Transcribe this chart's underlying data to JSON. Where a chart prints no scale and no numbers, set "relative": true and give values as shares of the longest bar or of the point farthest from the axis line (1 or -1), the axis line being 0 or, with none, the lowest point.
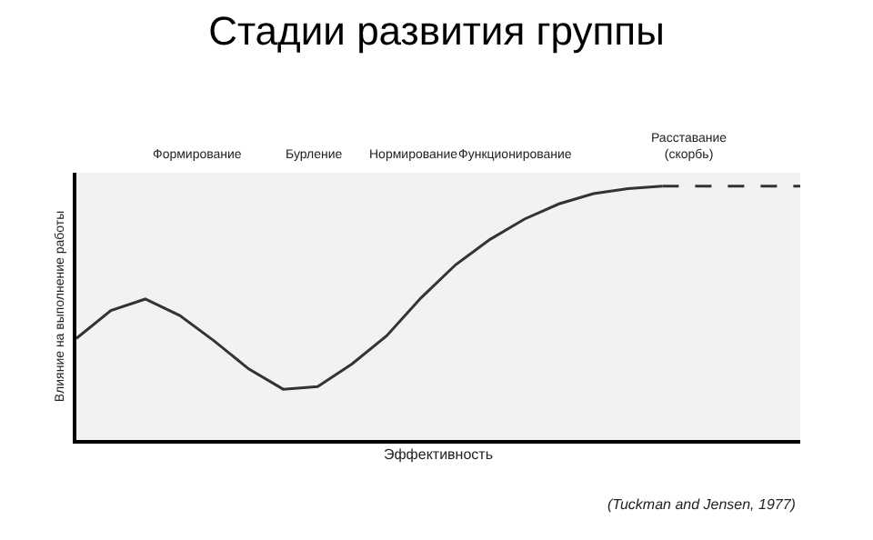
{
  "chart_data": {
    "type": "line",
    "relative": true,
    "title": "Стадии развития группы",
    "xlabel": "Эффективность",
    "ylabel": "Влияние на выполнение работы",
    "categories": [
      null,
      null,
      null,
      null,
      null,
      null,
      null,
      null,
      null,
      null,
      null,
      null,
      null,
      null,
      null,
      null,
      null,
      null,
      null,
      null,
      null,
      null
    ],
    "series": [
      {
        "color": "#333333",
        "line_style": "solid",
        "values": [
          0.4,
          0.51,
          0.555,
          0.49,
          0.39,
          0.28,
          0.2,
          0.21,
          0.3,
          0.41,
          0.56,
          0.69,
          0.79,
          0.87,
          0.93,
          0.97,
          0.99,
          1.0,
          null,
          null,
          null,
          null
        ]
      },
      {
        "color": "#333333",
        "line_style": "dashed",
        "values": [
          null,
          null,
          null,
          null,
          null,
          null,
          null,
          null,
          null,
          null,
          null,
          null,
          null,
          null,
          null,
          null,
          null,
          1.0,
          1.0,
          1.0,
          1.0,
          1.0
        ]
      }
    ],
    "tick_labels": false,
    "grid": false,
    "legend": false,
    "annotations": [
      "Формирование",
      "Бурление",
      "Нормирование",
      "Функционирование",
      "Расставание\n(скорбь)",
      "(Tuckman and Jensen, 1977)"
    ]
  }
}
